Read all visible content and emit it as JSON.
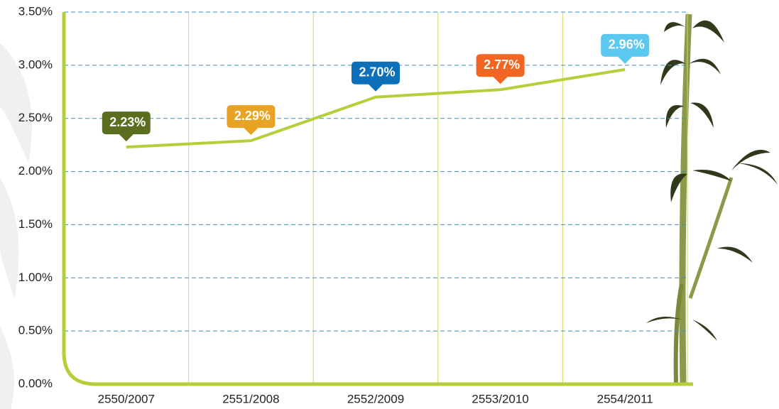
{
  "chart_data": {
    "type": "line",
    "categories": [
      "2550/2007",
      "2551/2008",
      "2552/2009",
      "2553/2010",
      "2554/2011"
    ],
    "values": [
      2.23,
      2.29,
      2.7,
      2.77,
      2.96
    ],
    "value_labels": [
      "2.23%",
      "2.29%",
      "2.70%",
      "2.77%",
      "2.96%"
    ],
    "label_colors": [
      "#5a6e1f",
      "#e8a324",
      "#0c6fb8",
      "#f26522",
      "#5bc8f0"
    ],
    "color": "#b5cf3a",
    "ylim": [
      0,
      3.5
    ],
    "yticks": [
      {
        "value": 0,
        "label": "0.00%"
      },
      {
        "value": 0.5,
        "label": "0.50%"
      },
      {
        "value": 1,
        "label": "1.00%"
      },
      {
        "value": 1.5,
        "label": "1.50%"
      },
      {
        "value": 2,
        "label": "2.00%"
      },
      {
        "value": 2.5,
        "label": "2.50%"
      },
      {
        "value": 3,
        "label": "3.00%"
      },
      {
        "value": 3.5,
        "label": "3.50%"
      }
    ],
    "grid": true
  }
}
